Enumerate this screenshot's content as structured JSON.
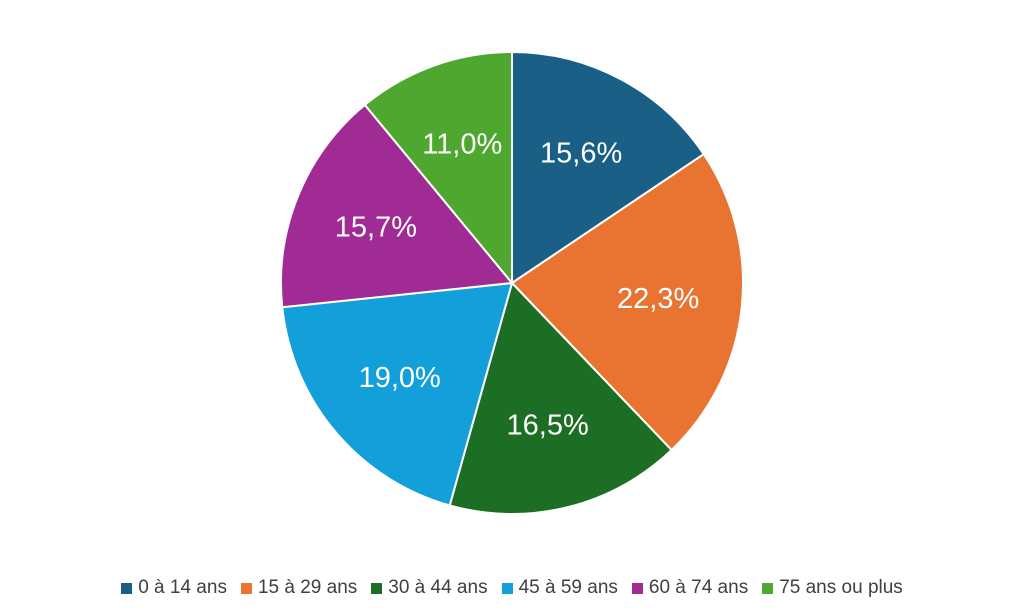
{
  "chart_data": {
    "type": "pie",
    "title": "",
    "legend_position": "bottom",
    "slices": [
      {
        "name": "0 à 14 ans",
        "value": 15.6,
        "label": "15,6%",
        "color": "#1a5f85"
      },
      {
        "name": "15 à 29 ans",
        "value": 22.3,
        "label": "22,3%",
        "color": "#e97432"
      },
      {
        "name": "30 à 44 ans",
        "value": 16.5,
        "label": "16,5%",
        "color": "#1d6e25"
      },
      {
        "name": "45 à 59 ans",
        "value": 19.0,
        "label": "19,0%",
        "color": "#139fd9"
      },
      {
        "name": "60 à 74 ans",
        "value": 15.7,
        "label": "15,7%",
        "color": "#a02b94"
      },
      {
        "name": "75 ans ou plus",
        "value": 11.0,
        "label": "11,0%",
        "color": "#4ea72e"
      }
    ]
  }
}
